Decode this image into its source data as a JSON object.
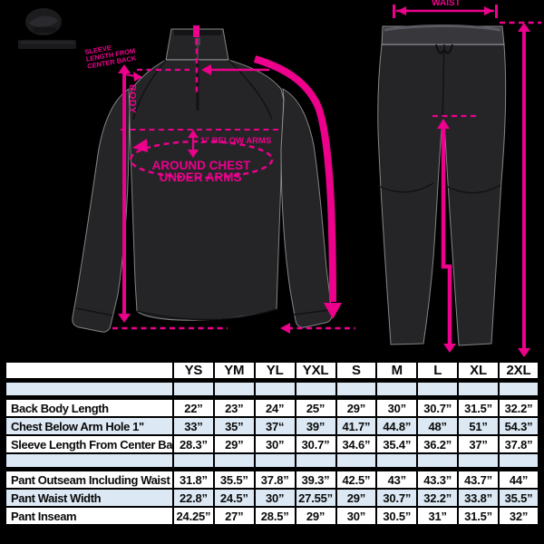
{
  "accent_color": "#ec008c",
  "jacket_labels": {
    "collar_note": [
      "SLEEVE",
      "LENGTH FROM",
      "CENTER BACK"
    ],
    "body": "BODY",
    "below_arms": "1” BELOW ARMS",
    "around_chest": [
      "AROUND CHEST",
      "UNDER ARMS"
    ]
  },
  "pants_labels": {
    "waist": "WAIST"
  },
  "size_table": {
    "columns": [
      "YS",
      "YM",
      "YL",
      "YXL",
      "S",
      "M",
      "L",
      "XL",
      "2XL"
    ],
    "sections": [
      {
        "rows": [
          {
            "label": "Back Body Length",
            "values": [
              "22”",
              "23”",
              "24”",
              "25”",
              "29”",
              "30”",
              "30.7”",
              "31.5”",
              "32.2”"
            ]
          },
          {
            "label": "Chest Below Arm Hole 1\"",
            "values": [
              "33”",
              "35”",
              "37“",
              "39”",
              "41.7”",
              "44.8”",
              "48”",
              "51”",
              "54.3”"
            ]
          },
          {
            "label": "Sleeve Length From Center Back",
            "values": [
              "28.3”",
              "29”",
              "30”",
              "30.7”",
              "34.6”",
              "35.4”",
              "36.2”",
              "37”",
              "37.8”"
            ]
          }
        ]
      },
      {
        "rows": [
          {
            "label": "Pant Outseam Including Waist",
            "values": [
              "31.8”",
              "35.5”",
              "37.8”",
              "39.3”",
              "42.5”",
              "43”",
              "43.3”",
              "43.7”",
              "44”"
            ]
          },
          {
            "label": "Pant Waist Width",
            "values": [
              "22.8”",
              "24.5”",
              "30”",
              "27.55”",
              "29”",
              "30.7”",
              "32.2”",
              "33.8”",
              "35.5”"
            ]
          },
          {
            "label": "Pant Inseam",
            "values": [
              "24.25”",
              "27”",
              "28.5”",
              "29”",
              "30”",
              "30.5”",
              "31”",
              "31.5”",
              "32”"
            ]
          }
        ]
      }
    ]
  }
}
